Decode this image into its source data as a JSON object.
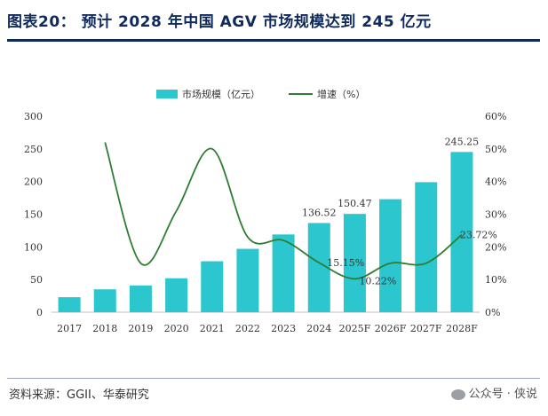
{
  "header": {
    "title": "图表20： 预计 2028 年中国 AGV 市场规模达到 245 亿元"
  },
  "footer": {
    "source": "资料来源：GGII、华泰研究",
    "watermark": "公众号 · 侠说",
    "watermark_icon": "wechat-icon"
  },
  "chart_data": {
    "type": "bar",
    "categories": [
      "2017",
      "2018",
      "2019",
      "2020",
      "2021",
      "2022",
      "2023",
      "2024",
      "2025F",
      "2026F",
      "2027F",
      "2028F"
    ],
    "series": [
      {
        "name": "市场规模（亿元）",
        "type": "bar",
        "axis": "left",
        "color": "#2cc6cf",
        "values": [
          23,
          35,
          41,
          52,
          78,
          97,
          119,
          136.52,
          150.47,
          173,
          199,
          245.25
        ]
      },
      {
        "name": "增速（%）",
        "type": "line",
        "axis": "right",
        "color": "#2e7d32",
        "values": [
          null,
          52,
          15,
          31,
          50,
          23,
          22,
          15.15,
          10.22,
          15,
          15,
          23.72
        ]
      }
    ],
    "left_axis": {
      "ylim": [
        0,
        300
      ],
      "ticks": [
        0,
        50,
        100,
        150,
        200,
        250,
        300
      ],
      "tick_labels": [
        "0",
        "50",
        "100",
        "150",
        "200",
        "250",
        "300"
      ]
    },
    "right_axis": {
      "ylim": [
        0,
        60
      ],
      "ticks": [
        0,
        10,
        20,
        30,
        40,
        50,
        60
      ],
      "tick_labels": [
        "0%",
        "10%",
        "20%",
        "30%",
        "40%",
        "50%",
        "60%"
      ]
    },
    "bar_data_labels": [
      {
        "index": 7,
        "text": "136.52"
      },
      {
        "index": 8,
        "text": "150.47"
      },
      {
        "index": 11,
        "text": "245.25"
      }
    ],
    "line_data_labels": [
      {
        "index": 7,
        "text": "15.15%"
      },
      {
        "index": 8,
        "text": "10.22%"
      },
      {
        "index": 11,
        "text": "23.72%"
      }
    ],
    "legend": [
      "市场规模（亿元）",
      "增速（%）"
    ],
    "legend_position": "top-center",
    "grid": false
  }
}
